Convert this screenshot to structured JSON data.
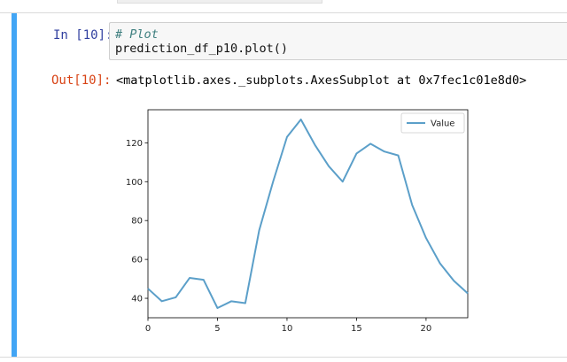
{
  "cell": {
    "input_prompt": "In [10]:",
    "output_prompt": "Out[10]:",
    "code": {
      "comment": "# Plot",
      "line": "prediction_df_p10.plot()"
    },
    "output_text": "<matplotlib.axes._subplots.AxesSubplot at 0x7fec1c01e8d0>"
  },
  "colors": {
    "cell_bar": "#42a5f5",
    "series_line": "#5b9fc9"
  },
  "chart_data": {
    "type": "line",
    "x": [
      0,
      1,
      2,
      3,
      4,
      5,
      6,
      7,
      8,
      9,
      10,
      11,
      12,
      13,
      14,
      15,
      16,
      17,
      18,
      19,
      20,
      21,
      22,
      23
    ],
    "series": [
      {
        "name": "Value",
        "values": [
          45,
          38.5,
          40.5,
          50.5,
          49.5,
          35,
          38.5,
          37.5,
          75,
          100,
          123,
          132,
          119,
          108,
          100,
          114.5,
          119.5,
          115.5,
          113.5,
          88,
          71,
          58,
          49,
          42.5
        ]
      }
    ],
    "xlim": [
      0,
      23
    ],
    "ylim": [
      30,
      137
    ],
    "xticks": [
      0,
      5,
      10,
      15,
      20
    ],
    "yticks": [
      40,
      60,
      80,
      100,
      120
    ],
    "xtick_labels": [
      "0",
      "5",
      "10",
      "15",
      "20"
    ],
    "ytick_labels": [
      "40",
      "60",
      "80",
      "100",
      "120"
    ],
    "legend": "top-right",
    "grid": false
  }
}
